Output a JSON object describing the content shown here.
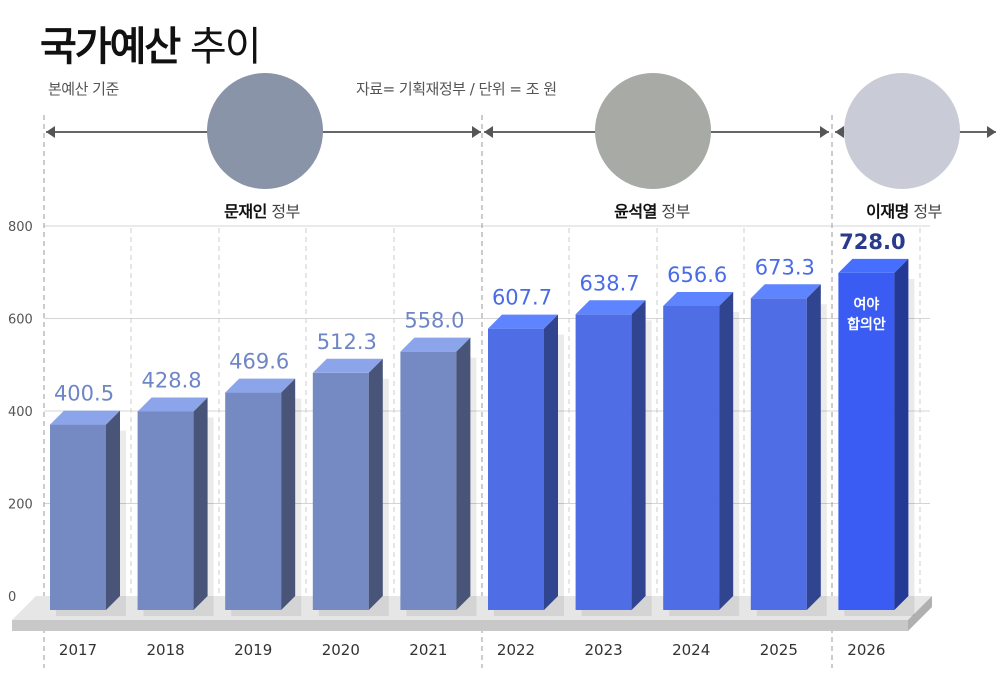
{
  "header": {
    "title_bold": "국가예산",
    "title_light": "추이",
    "basis_note": "본예산 기준",
    "source_note": "자료= 기획재정부 / 단위 = 조 원"
  },
  "governments": [
    {
      "name": "문재인",
      "suffix": "정부",
      "years": [
        "2017",
        "2021"
      ],
      "face_bg": "#8a94a8"
    },
    {
      "name": "윤석열",
      "suffix": "정부",
      "years": [
        "2022",
        "2025"
      ],
      "face_bg": "#a8aaa6"
    },
    {
      "name": "이재명",
      "suffix": "정부",
      "years": [
        "2026",
        "2026"
      ],
      "face_bg": "#c9ccd6"
    }
  ],
  "chart_data": {
    "type": "bar",
    "title": "국가예산 추이",
    "xlabel": "",
    "ylabel": "조 원",
    "ylim": [
      0,
      800
    ],
    "yticks": [
      0,
      200,
      400,
      600,
      800
    ],
    "grid": true,
    "categories": [
      "2017",
      "2018",
      "2019",
      "2020",
      "2021",
      "2022",
      "2023",
      "2024",
      "2025",
      "2026"
    ],
    "values": [
      400.5,
      428.8,
      469.6,
      512.3,
      558.0,
      607.7,
      638.7,
      656.6,
      673.3,
      728.0
    ],
    "value_labels": [
      "400.5",
      "428.8",
      "469.6",
      "512.3",
      "558.0",
      "607.7",
      "638.7",
      "656.6",
      "673.3",
      "728.0"
    ],
    "annotation": {
      "category": "2026",
      "line1": "여야",
      "line2": "합의안"
    },
    "colors": {
      "moon": "#7589c2",
      "yoon": "#4f6ee6",
      "lee": "#3a5cf2",
      "label_moon": "#6f86c6",
      "label_yoon": "#4a6be8",
      "label_lee": "#2a3a8c"
    }
  }
}
